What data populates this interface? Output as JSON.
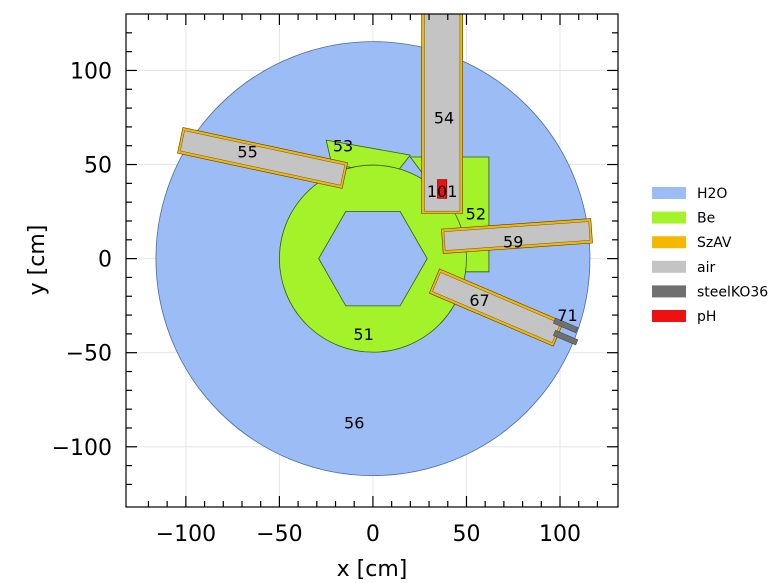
{
  "chart_data": {
    "type": "geometry-section",
    "xlabel": "x [cm]",
    "ylabel": "y [cm]",
    "xlim": [
      -132,
      131
    ],
    "ylim": [
      -132,
      130
    ],
    "xticks": [
      -100,
      -50,
      0,
      50,
      100
    ],
    "yticks": [
      -100,
      -50,
      0,
      50,
      100
    ],
    "xtick_labels": [
      "−100",
      "−50",
      "0",
      "50",
      "100"
    ],
    "ytick_labels": [
      "−100",
      "−50",
      "0",
      "50",
      "100"
    ],
    "grid": true,
    "legend_position": "right",
    "materials": [
      {
        "name": "H2O",
        "color": "#9bbcf4"
      },
      {
        "name": "Be",
        "color": "#a4f22a"
      },
      {
        "name": "SzAV",
        "color": "#f5b800"
      },
      {
        "name": "air",
        "color": "#c4c4c4"
      },
      {
        "name": "steelKO36",
        "color": "#707070"
      },
      {
        "name": "pH",
        "color": "#ee1111"
      }
    ],
    "cells": [
      {
        "label": "56",
        "material": "H2O",
        "at": [
          -10,
          -87
        ]
      },
      {
        "label": "51",
        "material": "Be",
        "at": [
          -5,
          -40
        ]
      },
      {
        "label": "52",
        "material": "Be",
        "at": [
          55,
          24
        ]
      },
      {
        "label": "53",
        "material": "Be",
        "at": [
          -16,
          60
        ]
      },
      {
        "label": "54",
        "material": "air",
        "at": [
          38,
          75
        ]
      },
      {
        "label": "55",
        "material": "air",
        "at": [
          -67,
          57
        ]
      },
      {
        "label": "59",
        "material": "air",
        "at": [
          75,
          9
        ]
      },
      {
        "label": "67",
        "material": "air",
        "at": [
          57,
          -22
        ]
      },
      {
        "label": "71",
        "material": "steelKO36",
        "at": [
          104,
          -30
        ]
      },
      {
        "label": "101",
        "material": "pH",
        "at": [
          37,
          36
        ]
      }
    ]
  }
}
